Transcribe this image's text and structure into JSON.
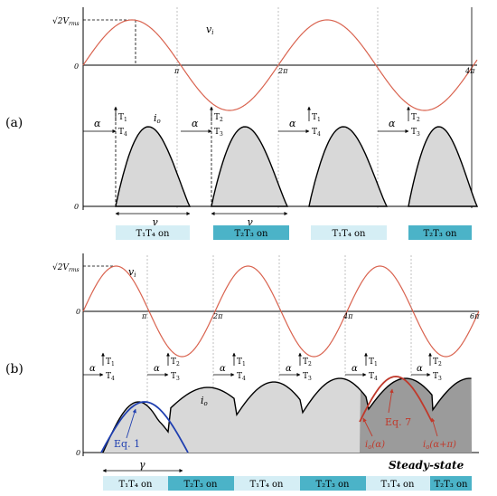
{
  "panels": [
    {
      "panel_label": "(a)",
      "vi_amplitude_label": "√2V",
      "vi_amplitude_sub": "rms",
      "vi_label": "v",
      "vi_label_sub": "i",
      "io_label": "i",
      "io_label_sub": "o",
      "zero_top": "0",
      "zero_bottom": "0",
      "angle_ticks": [
        "π",
        "2π",
        "4π"
      ],
      "alpha_symbol": "α",
      "gamma_symbol": "γ",
      "thyristor_pairs": [
        {
          "top": "T",
          "top_sub": "1",
          "bottom": "T",
          "bottom_sub": "4"
        },
        {
          "top": "T",
          "top_sub": "2",
          "bottom": "T",
          "bottom_sub": "3"
        },
        {
          "top": "T",
          "top_sub": "1",
          "bottom": "T",
          "bottom_sub": "4"
        },
        {
          "top": "T",
          "top_sub": "2",
          "bottom": "T",
          "bottom_sub": "3"
        }
      ],
      "conduction_bars": [
        {
          "label": "T₁T₄ on",
          "color": "#d5eef5"
        },
        {
          "label": "T₂T₃ on",
          "color": "#4bb3c8"
        },
        {
          "label": "T₁T₄ on",
          "color": "#d5eef5"
        },
        {
          "label": "T₂T₃ on",
          "color": "#4bb3c8"
        }
      ]
    },
    {
      "panel_label": "(b)",
      "vi_amplitude_label": "√2V",
      "vi_amplitude_sub": "rms",
      "vi_label": "v",
      "vi_label_sub": "i",
      "io_label": "i",
      "io_label_sub": "o",
      "zero_top": "0",
      "zero_bottom": "0",
      "angle_ticks": [
        "π",
        "2π",
        "4π",
        "6π"
      ],
      "alpha_symbol": "α",
      "gamma_symbol": "γ",
      "thyristor_pairs": [
        {
          "top": "T",
          "top_sub": "1",
          "bottom": "T",
          "bottom_sub": "4"
        },
        {
          "top": "T",
          "top_sub": "2",
          "bottom": "T",
          "bottom_sub": "3"
        },
        {
          "top": "T",
          "top_sub": "1",
          "bottom": "T",
          "bottom_sub": "4"
        },
        {
          "top": "T",
          "top_sub": "2",
          "bottom": "T",
          "bottom_sub": "3"
        },
        {
          "top": "T",
          "top_sub": "1",
          "bottom": "T",
          "bottom_sub": "4"
        },
        {
          "top": "T",
          "top_sub": "2",
          "bottom": "T",
          "bottom_sub": "3"
        }
      ],
      "annotations": {
        "eq1": "Eq. 1",
        "eq7": "Eq. 7",
        "io_alpha": "i",
        "io_alpha_sub": "o",
        "io_alpha_arg": "(α)",
        "io_alpha_pi": "i",
        "io_alpha_pi_sub": "o",
        "io_alpha_pi_arg": "(α+π)",
        "steady_state": "Steady-state"
      },
      "conduction_bars": [
        {
          "label": "T₁T₄ on",
          "color": "#d5eef5"
        },
        {
          "label": "T₂T₃ on",
          "color": "#4bb3c8"
        },
        {
          "label": "T₁T₄ on",
          "color": "#d5eef5"
        },
        {
          "label": "T₂T₃ on",
          "color": "#4bb3c8"
        },
        {
          "label": "T₁T₄ on",
          "color": "#d5eef5"
        },
        {
          "label": "T₂T₃ on",
          "color": "#4bb3c8"
        }
      ]
    }
  ],
  "colors": {
    "vi_curve": "#d9634f",
    "io_fill": "#d8d8d8",
    "steady_fill": "#9b9b9b",
    "eq1_curve": "#1f3fb0",
    "eq7_curve": "#c0392b"
  }
}
